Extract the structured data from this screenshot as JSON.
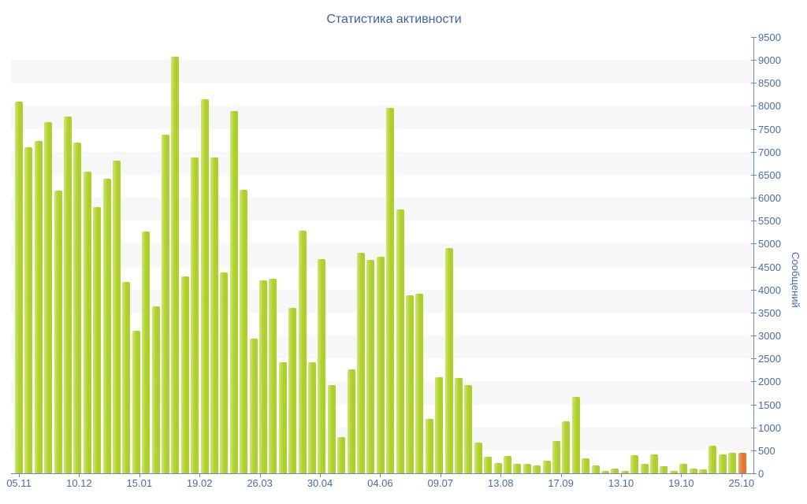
{
  "title": "Статистика активности",
  "y_axis": {
    "title": "Сообщений",
    "min": 0,
    "max": 9500,
    "step": 500
  },
  "x_axis": {
    "labels": [
      "05.11",
      "10.12",
      "15.01",
      "19.02",
      "26.03",
      "30.04",
      "04.06",
      "09.07",
      "13.08",
      "17.09",
      "13.10",
      "19.10",
      "25.10"
    ]
  },
  "colors": {
    "bar_main": "#aed02f",
    "bar_light": "#cfe76e",
    "bar_current_main": "#e2762f",
    "bar_current_light": "#f0a55f",
    "stripe": "#f7f7f7",
    "axis_line": "#7089b5",
    "labels": "#4a6da8",
    "title": "#40639f"
  },
  "chart_data": {
    "type": "bar",
    "title": "Статистика активности",
    "xlabel": "",
    "ylabel": "Сообщений",
    "ylim": [
      0,
      9500
    ],
    "grid": "horizontal-stripes-every-500",
    "legend": "none",
    "x_tick_labels": [
      "05.11",
      "10.12",
      "15.01",
      "19.02",
      "26.03",
      "30.04",
      "04.06",
      "09.07",
      "13.08",
      "17.09",
      "13.10",
      "19.10",
      "25.10"
    ],
    "values": [
      8100,
      7100,
      7230,
      7650,
      6160,
      7760,
      7200,
      6570,
      5800,
      6420,
      6800,
      4170,
      3100,
      5270,
      3630,
      7380,
      9070,
      4290,
      6870,
      8150,
      6870,
      4380,
      7880,
      6180,
      2930,
      4200,
      4240,
      2410,
      3600,
      5280,
      2410,
      4660,
      1920,
      790,
      2270,
      4800,
      4650,
      4720,
      7950,
      5750,
      3880,
      3910,
      1180,
      2090,
      4900,
      2070,
      1920,
      670,
      360,
      220,
      380,
      210,
      200,
      175,
      275,
      710,
      1140,
      1670,
      330,
      180,
      50,
      110,
      50,
      400,
      210,
      410,
      150,
      50,
      200,
      110,
      80,
      600,
      410,
      440,
      450
    ],
    "highlighted_last_bar": {
      "index": 75,
      "value": 450,
      "color": "#e2762f"
    }
  }
}
